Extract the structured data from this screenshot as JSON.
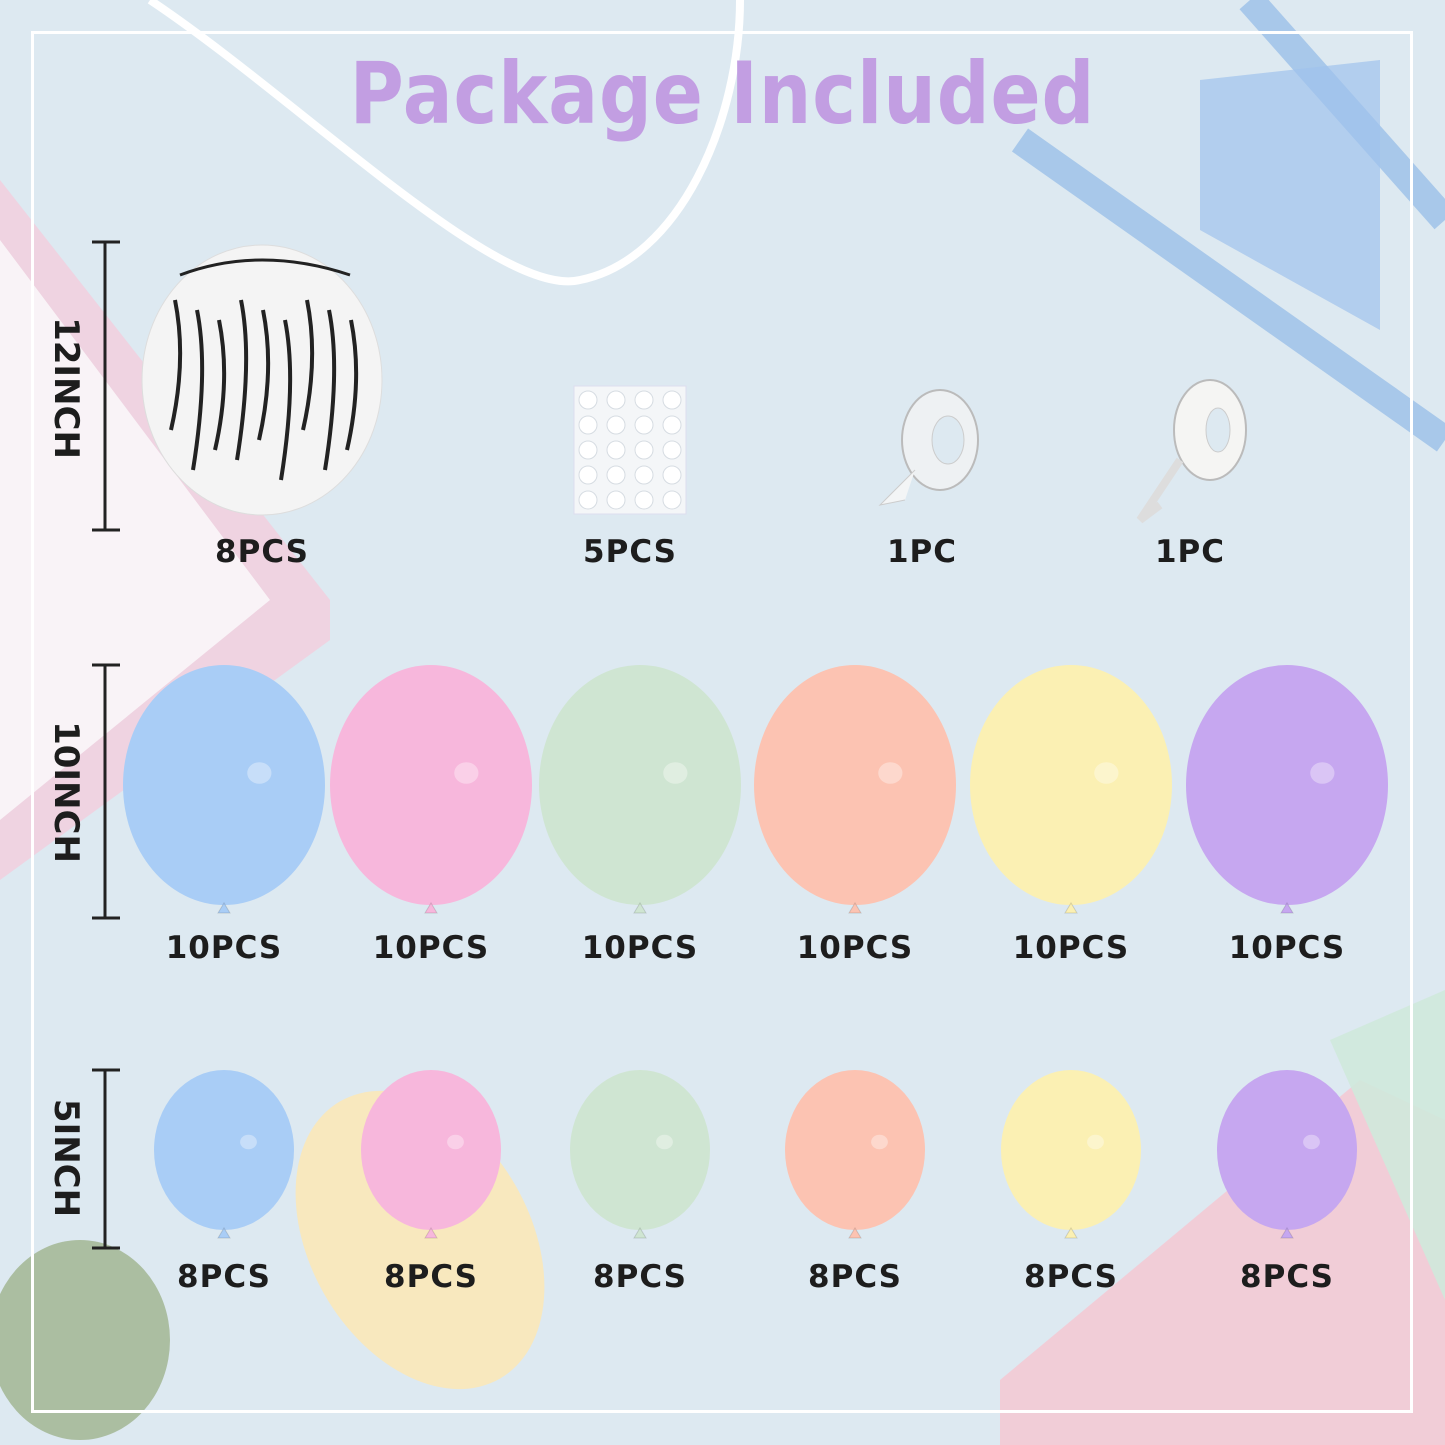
{
  "title": "Package Included",
  "sizes": [
    "12INCH",
    "10INCH",
    "5INCH"
  ],
  "row12": [
    {
      "item": "zebra-balloon",
      "count": "8PCS"
    },
    {
      "item": "glue-dots",
      "count": "5PCS"
    },
    {
      "item": "clear-tape",
      "count": "1PC"
    },
    {
      "item": "ribbon",
      "count": "1PC"
    }
  ],
  "row10": [
    {
      "color": "#a9cdf6",
      "count": "10PCS"
    },
    {
      "color": "#f7b7dc",
      "count": "10PCS"
    },
    {
      "color": "#cfe5d2",
      "count": "10PCS"
    },
    {
      "color": "#fcc3b2",
      "count": "10PCS"
    },
    {
      "color": "#fbf0b3",
      "count": "10PCS"
    },
    {
      "color": "#c6a7f0",
      "count": "10PCS"
    }
  ],
  "row5": [
    {
      "color": "#a9cdf6",
      "count": "8PCS"
    },
    {
      "color": "#f7b7dc",
      "count": "8PCS"
    },
    {
      "color": "#cfe5d2",
      "count": "8PCS"
    },
    {
      "color": "#fcc3b2",
      "count": "8PCS"
    },
    {
      "color": "#fbf0b3",
      "count": "8PCS"
    },
    {
      "color": "#c6a7f0",
      "count": "8PCS"
    }
  ],
  "colors": {
    "title": "#c29ee2",
    "background": "#dde9f1",
    "text": "#1d1d1d"
  }
}
